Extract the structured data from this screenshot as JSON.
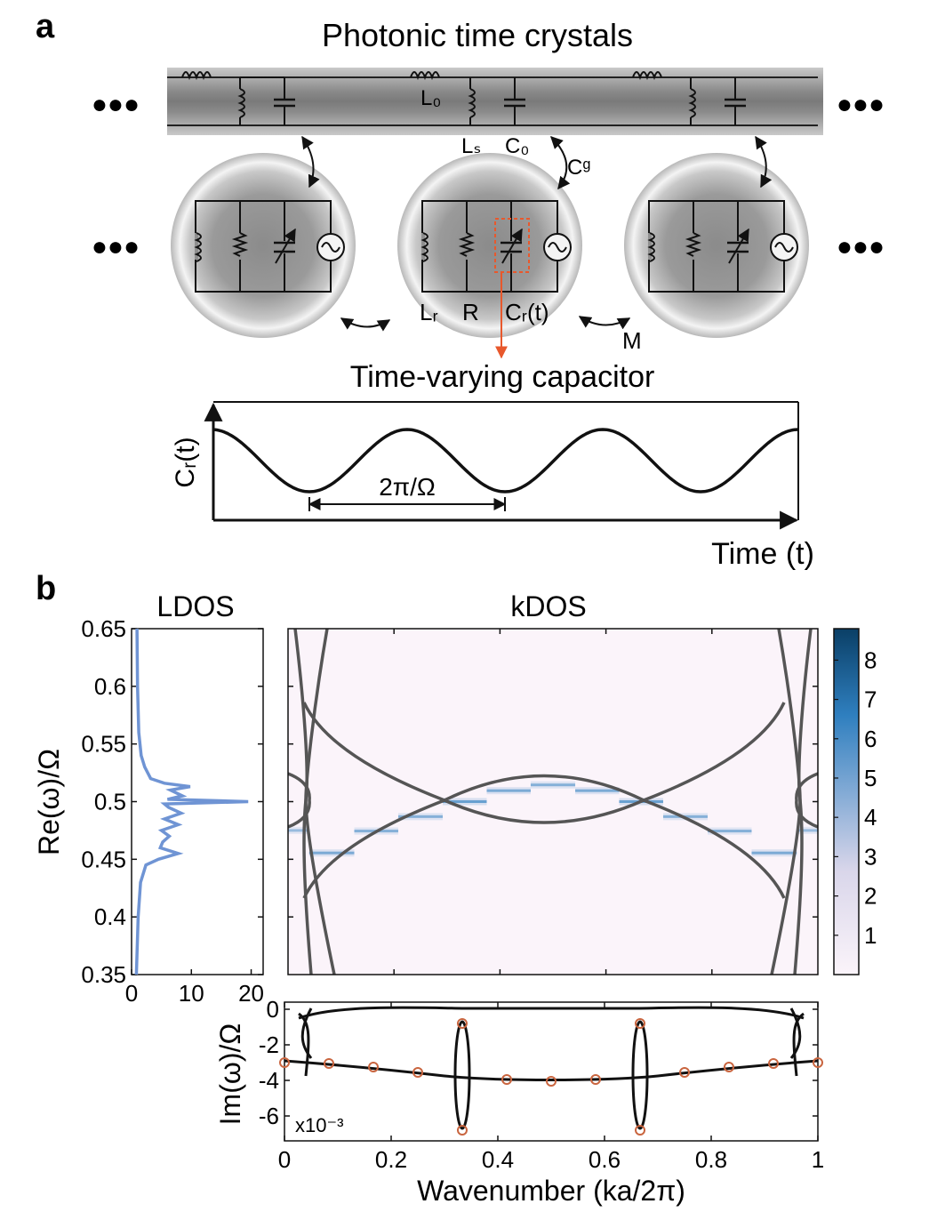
{
  "panel_a": {
    "label": "a",
    "title": "Photonic time crystals",
    "ellipsis": "●●●",
    "labels": {
      "L0": "L₀",
      "Ls": "Lₛ",
      "C0": "C₀",
      "Cg": "Cᵍ",
      "Lr": "Lᵣ",
      "R": "R",
      "Crt": "Cᵣ(t)",
      "M": "M"
    },
    "inset": {
      "title": "Time-varying capacitor",
      "ylabel": "Cᵣ(t)",
      "xlabel": "Time (t)",
      "period_label": "2π/Ω"
    }
  },
  "panel_b": {
    "label": "b"
  },
  "chart_data": [
    {
      "type": "line",
      "title": "LDOS",
      "xlabel": "",
      "ylabel": "Re(ω)/Ω",
      "xlim": [
        0,
        22
      ],
      "ylim": [
        0.35,
        0.65
      ],
      "xticks": [
        0,
        10,
        20
      ],
      "yticks": [
        0.35,
        0.4,
        0.45,
        0.5,
        0.55,
        0.6,
        0.65
      ],
      "ytick_labels": [
        "0.35",
        "0.4",
        "0.45",
        "0.5",
        "0.55",
        "0.6",
        "0.65"
      ],
      "series": [
        {
          "name": "LDOS",
          "color": "#6f94d4",
          "y": [
            0.35,
            0.4,
            0.43,
            0.445,
            0.45,
            0.455,
            0.46,
            0.465,
            0.47,
            0.475,
            0.48,
            0.485,
            0.49,
            0.495,
            0.498,
            0.5,
            0.502,
            0.505,
            0.51,
            0.513,
            0.516,
            0.52,
            0.53,
            0.54,
            0.56,
            0.6,
            0.65
          ],
          "x": [
            0.8,
            1.1,
            1.5,
            2.4,
            4.5,
            7.8,
            4.8,
            5.2,
            6.3,
            5.0,
            7.8,
            5.5,
            8.3,
            6.2,
            5.5,
            19.5,
            6.0,
            8.5,
            6.5,
            9.8,
            5.5,
            3.2,
            2.2,
            1.6,
            1.2,
            1.0,
            0.9
          ]
        }
      ]
    },
    {
      "type": "heatmap",
      "title": "kDOS",
      "xlim": [
        0,
        1
      ],
      "ylim": [
        0.35,
        0.65
      ],
      "colorbar": {
        "range": [
          0,
          8.8
        ],
        "ticks": [
          1,
          2,
          3,
          4,
          5,
          6,
          7,
          8
        ],
        "colors": [
          "#fbf4fa",
          "#0a3f66"
        ]
      },
      "kdos_segments": [
        {
          "k": [
            0.0,
            0.04
          ],
          "y": 0.475,
          "intensity": 4.0
        },
        {
          "k": [
            0.04,
            0.125
          ],
          "y": 0.4555,
          "intensity": 5.5
        },
        {
          "k": [
            0.125,
            0.208
          ],
          "y": 0.4745,
          "intensity": 5.0
        },
        {
          "k": [
            0.208,
            0.292
          ],
          "y": 0.487,
          "intensity": 5.0
        },
        {
          "k": [
            0.292,
            0.375
          ],
          "y": 0.5,
          "intensity": 6.5
        },
        {
          "k": [
            0.375,
            0.458
          ],
          "y": 0.5095,
          "intensity": 5.5
        },
        {
          "k": [
            0.458,
            0.542
          ],
          "y": 0.5145,
          "intensity": 5.0
        },
        {
          "k": [
            0.542,
            0.625
          ],
          "y": 0.5095,
          "intensity": 5.5
        },
        {
          "k": [
            0.625,
            0.708
          ],
          "y": 0.5,
          "intensity": 6.5
        },
        {
          "k": [
            0.708,
            0.792
          ],
          "y": 0.487,
          "intensity": 5.0
        },
        {
          "k": [
            0.792,
            0.875
          ],
          "y": 0.4745,
          "intensity": 5.0
        },
        {
          "k": [
            0.875,
            0.96
          ],
          "y": 0.4555,
          "intensity": 5.5
        },
        {
          "k": [
            0.96,
            1.0
          ],
          "y": 0.475,
          "intensity": 4.0
        }
      ]
    },
    {
      "type": "line",
      "title": "",
      "xlabel": "Wavenumber (ka/2π)",
      "ylabel": "Im(ω)/Ω",
      "xlim": [
        0,
        1
      ],
      "ylim": [
        -7.4,
        0.4
      ],
      "xticks": [
        0,
        0.2,
        0.4,
        0.6,
        0.8,
        1
      ],
      "xtick_labels": [
        "0",
        "0.2",
        "0.4",
        "0.6",
        "0.8",
        "1"
      ],
      "yticks": [
        0,
        -2,
        -4,
        -6
      ],
      "ytick_labels": [
        "0",
        "-2",
        "-4",
        "-6"
      ],
      "scale_label": "x10⁻³",
      "markers": {
        "color": "#c9653f",
        "points": [
          [
            0.0,
            -3.0
          ],
          [
            0.0833,
            -3.05
          ],
          [
            0.1667,
            -3.25
          ],
          [
            0.25,
            -3.55
          ],
          [
            0.3333,
            -0.8
          ],
          [
            0.3333,
            -6.8
          ],
          [
            0.4167,
            -3.95
          ],
          [
            0.5,
            -4.05
          ],
          [
            0.5833,
            -3.95
          ],
          [
            0.6667,
            -0.8
          ],
          [
            0.6667,
            -6.8
          ],
          [
            0.75,
            -3.55
          ],
          [
            0.8333,
            -3.25
          ],
          [
            0.9167,
            -3.05
          ],
          [
            1.0,
            -3.0
          ]
        ]
      }
    }
  ]
}
